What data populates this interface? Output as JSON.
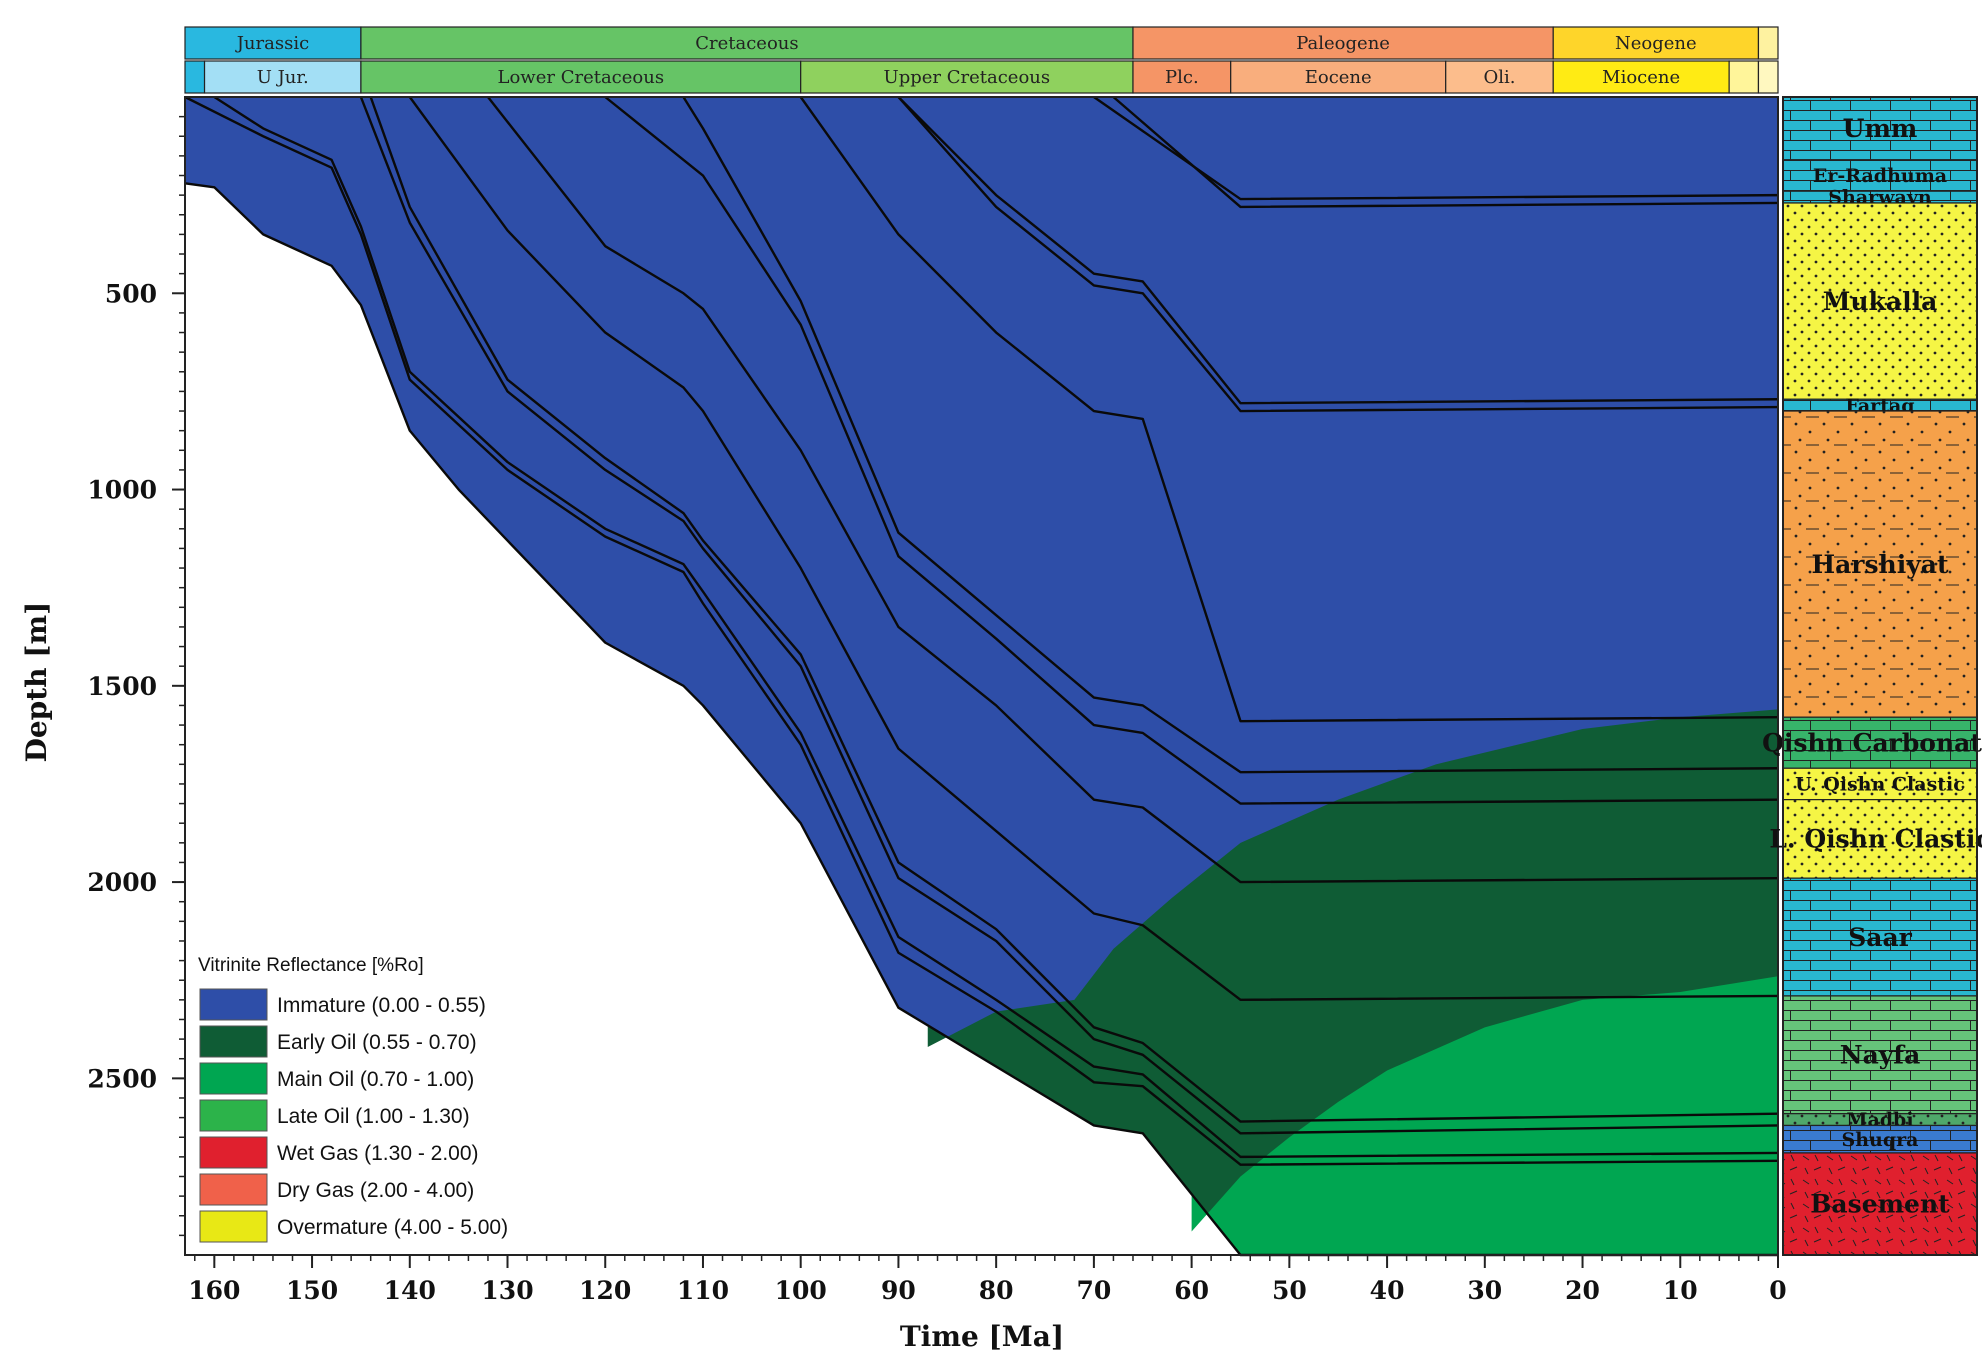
{
  "chart_data": {
    "type": "area",
    "title": "",
    "xlabel": "Time [Ma]",
    "ylabel": "Depth [m]",
    "x_reversed": true,
    "y_reversed": true,
    "xlim": [
      163,
      0
    ],
    "ylim": [
      0,
      2950
    ],
    "x_ticks": [
      "160",
      "150",
      "140",
      "130",
      "120",
      "110",
      "100",
      "90",
      "80",
      "70",
      "60",
      "50",
      "40",
      "30",
      "20",
      "10",
      "0"
    ],
    "y_ticks": [
      "500",
      "1000",
      "1500",
      "2000",
      "2500"
    ],
    "periods": [
      {
        "label": "Jurassic",
        "start": 163,
        "end": 145,
        "color": "#29b8e0"
      },
      {
        "label": "Cretaceous",
        "start": 145,
        "end": 66,
        "color": "#66c466"
      },
      {
        "label": "Paleogene",
        "start": 66,
        "end": 23,
        "color": "#f59566"
      },
      {
        "label": "Neogene",
        "start": 23,
        "end": 2,
        "color": "#fed52a"
      },
      {
        "label": "",
        "start": 2,
        "end": 0,
        "color": "#fef2a0"
      }
    ],
    "epochs": [
      {
        "label": "",
        "start": 163,
        "end": 161,
        "color": "#29b8e0"
      },
      {
        "label": "U Jur.",
        "start": 161,
        "end": 145,
        "color": "#a3dff5"
      },
      {
        "label": "Lower Cretaceous",
        "start": 145,
        "end": 100,
        "color": "#66c466"
      },
      {
        "label": "Upper Cretaceous",
        "start": 100,
        "end": 66,
        "color": "#8fd15e"
      },
      {
        "label": "Plc.",
        "start": 66,
        "end": 56,
        "color": "#f59566"
      },
      {
        "label": "Eocene",
        "start": 56,
        "end": 34,
        "color": "#f9ae7d"
      },
      {
        "label": "Oli.",
        "start": 34,
        "end": 23,
        "color": "#fcbd8c"
      },
      {
        "label": "Miocene",
        "start": 23,
        "end": 5,
        "color": "#ffeb14"
      },
      {
        "label": "",
        "start": 5,
        "end": 2,
        "color": "#fff59a"
      },
      {
        "label": "",
        "start": 2,
        "end": 0,
        "color": "#fff8c0"
      }
    ],
    "burial_curves": [
      {
        "points": [
          [
            163,
            220
          ],
          [
            160,
            230
          ],
          [
            155,
            350
          ],
          [
            148,
            430
          ],
          [
            145,
            530
          ],
          [
            140,
            850
          ],
          [
            135,
            1000
          ],
          [
            130,
            1130
          ],
          [
            125,
            1260
          ],
          [
            120,
            1390
          ],
          [
            112,
            1500
          ],
          [
            110,
            1550
          ],
          [
            100,
            1850
          ],
          [
            90,
            2320
          ],
          [
            70,
            2620
          ],
          [
            65,
            2640
          ],
          [
            55,
            2950
          ],
          [
            0,
            2950
          ]
        ]
      },
      {
        "points": [
          [
            163,
            0
          ],
          [
            155,
            100
          ],
          [
            148,
            180
          ],
          [
            145,
            350
          ],
          [
            140,
            720
          ],
          [
            130,
            950
          ],
          [
            120,
            1120
          ],
          [
            112,
            1210
          ],
          [
            110,
            1290
          ],
          [
            100,
            1650
          ],
          [
            90,
            2180
          ],
          [
            80,
            2330
          ],
          [
            70,
            2510
          ],
          [
            65,
            2520
          ],
          [
            55,
            2720
          ],
          [
            0,
            2710
          ]
        ]
      },
      {
        "points": [
          [
            160,
            0
          ],
          [
            155,
            80
          ],
          [
            148,
            160
          ],
          [
            145,
            330
          ],
          [
            140,
            700
          ],
          [
            130,
            930
          ],
          [
            120,
            1100
          ],
          [
            112,
            1190
          ],
          [
            110,
            1260
          ],
          [
            100,
            1620
          ],
          [
            90,
            2140
          ],
          [
            80,
            2300
          ],
          [
            70,
            2470
          ],
          [
            65,
            2490
          ],
          [
            55,
            2700
          ],
          [
            0,
            2690
          ]
        ]
      },
      {
        "points": [
          [
            145,
            0
          ],
          [
            140,
            320
          ],
          [
            130,
            750
          ],
          [
            120,
            950
          ],
          [
            112,
            1080
          ],
          [
            110,
            1150
          ],
          [
            100,
            1450
          ],
          [
            90,
            1990
          ],
          [
            80,
            2150
          ],
          [
            70,
            2400
          ],
          [
            65,
            2440
          ],
          [
            55,
            2640
          ],
          [
            0,
            2620
          ]
        ]
      },
      {
        "points": [
          [
            144,
            0
          ],
          [
            140,
            280
          ],
          [
            130,
            720
          ],
          [
            120,
            920
          ],
          [
            112,
            1060
          ],
          [
            110,
            1130
          ],
          [
            100,
            1420
          ],
          [
            90,
            1950
          ],
          [
            80,
            2120
          ],
          [
            70,
            2370
          ],
          [
            65,
            2410
          ],
          [
            55,
            2610
          ],
          [
            0,
            2590
          ]
        ]
      },
      {
        "points": [
          [
            140,
            0
          ],
          [
            130,
            340
          ],
          [
            120,
            600
          ],
          [
            112,
            740
          ],
          [
            110,
            800
          ],
          [
            100,
            1200
          ],
          [
            90,
            1660
          ],
          [
            80,
            1870
          ],
          [
            70,
            2080
          ],
          [
            65,
            2110
          ],
          [
            55,
            2300
          ],
          [
            0,
            2290
          ]
        ]
      },
      {
        "points": [
          [
            132,
            0
          ],
          [
            120,
            380
          ],
          [
            112,
            500
          ],
          [
            110,
            540
          ],
          [
            100,
            900
          ],
          [
            90,
            1350
          ],
          [
            80,
            1550
          ],
          [
            70,
            1790
          ],
          [
            65,
            1810
          ],
          [
            55,
            2000
          ],
          [
            0,
            1990
          ]
        ]
      },
      {
        "points": [
          [
            120,
            0
          ],
          [
            110,
            200
          ],
          [
            100,
            580
          ],
          [
            90,
            1170
          ],
          [
            80,
            1380
          ],
          [
            70,
            1600
          ],
          [
            65,
            1620
          ],
          [
            55,
            1800
          ],
          [
            0,
            1790
          ]
        ]
      },
      {
        "points": [
          [
            112,
            0
          ],
          [
            110,
            80
          ],
          [
            100,
            520
          ],
          [
            90,
            1110
          ],
          [
            80,
            1320
          ],
          [
            70,
            1530
          ],
          [
            65,
            1550
          ],
          [
            55,
            1720
          ],
          [
            0,
            1710
          ]
        ]
      },
      {
        "points": [
          [
            100,
            0
          ],
          [
            90,
            350
          ],
          [
            80,
            600
          ],
          [
            70,
            800
          ],
          [
            65,
            820
          ],
          [
            55,
            1590
          ],
          [
            0,
            1580
          ]
        ]
      },
      {
        "points": [
          [
            90,
            0
          ],
          [
            80,
            250
          ],
          [
            70,
            450
          ],
          [
            65,
            470
          ],
          [
            55,
            780
          ],
          [
            0,
            770
          ]
        ]
      },
      {
        "points": [
          [
            90,
            0
          ],
          [
            80,
            280
          ],
          [
            70,
            480
          ],
          [
            65,
            500
          ],
          [
            55,
            800
          ],
          [
            0,
            790
          ]
        ]
      },
      {
        "points": [
          [
            70,
            0
          ],
          [
            55,
            260
          ],
          [
            0,
            250
          ]
        ]
      },
      {
        "points": [
          [
            68,
            0
          ],
          [
            55,
            280
          ],
          [
            0,
            270
          ]
        ]
      }
    ],
    "maturity_zones": [
      {
        "name": "Early Oil",
        "boundary": [
          [
            87,
            2420
          ],
          [
            80,
            2330
          ],
          [
            72,
            2300
          ],
          [
            68,
            2170
          ],
          [
            62,
            2040
          ],
          [
            55,
            1900
          ],
          [
            45,
            1790
          ],
          [
            35,
            1700
          ],
          [
            20,
            1610
          ],
          [
            10,
            1580
          ],
          [
            0,
            1560
          ]
        ]
      },
      {
        "name": "Main Oil",
        "boundary": [
          [
            60,
            2890
          ],
          [
            55,
            2750
          ],
          [
            50,
            2650
          ],
          [
            45,
            2560
          ],
          [
            40,
            2480
          ],
          [
            30,
            2370
          ],
          [
            20,
            2300
          ],
          [
            10,
            2280
          ],
          [
            0,
            2240
          ]
        ]
      }
    ],
    "legend": {
      "title": "Vitrinite Reflectance [%Ro]",
      "position": "bottom-left",
      "items": [
        {
          "label": "Immature (0.00 - 0.55)",
          "color": "#2e4ea8"
        },
        {
          "label": "Early Oil (0.55 - 0.70)",
          "color": "#0f5c35"
        },
        {
          "label": "Main Oil (0.70 - 1.00)",
          "color": "#00a651"
        },
        {
          "label": "Late Oil (1.00 - 1.30)",
          "color": "#2cb34a"
        },
        {
          "label": "Wet Gas (1.30 - 2.00)",
          "color": "#e0202e"
        },
        {
          "label": "Dry Gas (2.00 - 4.00)",
          "color": "#f0614a"
        },
        {
          "label": "Overmature (4.00 - 5.00)",
          "color": "#e8e815"
        }
      ]
    },
    "formations": [
      {
        "name": "Umm",
        "top": 0,
        "base": 160,
        "color": "#29b8d0",
        "pattern": "brick"
      },
      {
        "name": "Er-Radhuma",
        "top": 160,
        "base": 240,
        "color": "#29b8d0",
        "pattern": "brick"
      },
      {
        "name": "Sharwayn",
        "top": 240,
        "base": 270,
        "color": "#29b8d0",
        "pattern": "brick"
      },
      {
        "name": "Mukalla",
        "top": 270,
        "base": 770,
        "color": "#f5f545",
        "pattern": "dots"
      },
      {
        "name": "Fartaq",
        "top": 770,
        "base": 800,
        "color": "#29b8d0",
        "pattern": "brick"
      },
      {
        "name": "Harshiyat",
        "top": 800,
        "base": 1580,
        "color": "#f5a14a",
        "pattern": "dots-dash"
      },
      {
        "name": "Qishn Carbonate",
        "top": 1580,
        "base": 1710,
        "color": "#37b36a",
        "pattern": "brick"
      },
      {
        "name": "U. Qishn Clastic",
        "top": 1710,
        "base": 1790,
        "color": "#f5f545",
        "pattern": "dots"
      },
      {
        "name": "L. Qishn Clastic",
        "top": 1790,
        "base": 1990,
        "color": "#f5f545",
        "pattern": "dots"
      },
      {
        "name": "Saar",
        "top": 1990,
        "base": 2290,
        "color": "#29b8d0",
        "pattern": "brick"
      },
      {
        "name": "Nayfa",
        "top": 2290,
        "base": 2590,
        "color": "#66c47a",
        "pattern": "brick"
      },
      {
        "name": "Madbi",
        "top": 2590,
        "base": 2620,
        "color": "#4fa86a",
        "pattern": "dots"
      },
      {
        "name": "Shuqra",
        "top": 2620,
        "base": 2690,
        "color": "#3a7bd0",
        "pattern": "brick"
      },
      {
        "name": "Basement",
        "top": 2690,
        "base": 2950,
        "color": "#e0202e",
        "pattern": "hatch"
      }
    ]
  }
}
